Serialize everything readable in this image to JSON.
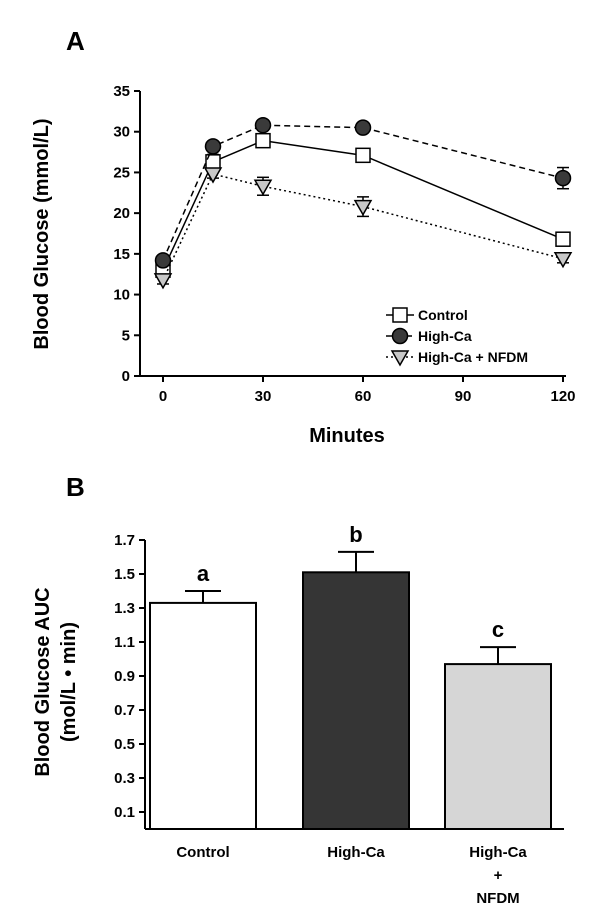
{
  "chart_data": [
    {
      "panel": "A",
      "type": "line",
      "xlabel": "Minutes",
      "ylabel": "Blood Glucose (mmol/L)",
      "xlim": [
        0,
        120
      ],
      "ylim": [
        0,
        35
      ],
      "xticks": [
        0,
        30,
        60,
        90,
        120
      ],
      "yticks": [
        0,
        5,
        10,
        15,
        20,
        25,
        30,
        35
      ],
      "grid": false,
      "legend_position": "bottom-right",
      "series": [
        {
          "name": "Control",
          "marker": "square",
          "fill": "#ffffff",
          "line": "solid",
          "x": [
            0,
            15,
            30,
            60,
            120
          ],
          "y": [
            13.0,
            26.3,
            28.9,
            27.1,
            16.8
          ],
          "err": [
            0.8,
            0.9,
            0.7,
            0.8,
            0.7
          ]
        },
        {
          "name": "High-Ca",
          "marker": "circle",
          "fill": "#3a3a3a",
          "line": "dashed",
          "x": [
            0,
            15,
            30,
            60,
            120
          ],
          "y": [
            14.2,
            28.2,
            30.8,
            30.5,
            24.3
          ],
          "err": [
            0.6,
            0.6,
            0.6,
            0.6,
            1.3
          ]
        },
        {
          "name": "High-Ca + NFDM",
          "marker": "triangle-down",
          "fill": "#c8c8c8",
          "line": "dotted",
          "x": [
            0,
            15,
            30,
            60,
            120
          ],
          "y": [
            11.8,
            24.8,
            23.3,
            20.8,
            14.4
          ],
          "err": [
            0.5,
            0.5,
            1.1,
            1.2,
            0.5
          ]
        }
      ]
    },
    {
      "panel": "B",
      "type": "bar",
      "ylabel_line1": "Blood Glucose AUC",
      "ylabel_line2": "(mol/L • min)",
      "ylim": [
        0,
        1.7
      ],
      "yticks": [
        0.1,
        0.3,
        0.5,
        0.7,
        0.9,
        1.1,
        1.3,
        1.5,
        1.7
      ],
      "grid": false,
      "categories": [
        {
          "line1": "Control",
          "line2": "",
          "line3": ""
        },
        {
          "line1": "High-Ca",
          "line2": "",
          "line3": ""
        },
        {
          "line1": "High-Ca",
          "line2": "+",
          "line3": "NFDM"
        }
      ],
      "values": [
        1.33,
        1.51,
        0.97
      ],
      "errors": [
        0.07,
        0.12,
        0.1
      ],
      "letters": [
        "a",
        "b",
        "c"
      ],
      "colors": [
        "#ffffff",
        "#353535",
        "#d6d6d6"
      ]
    }
  ]
}
